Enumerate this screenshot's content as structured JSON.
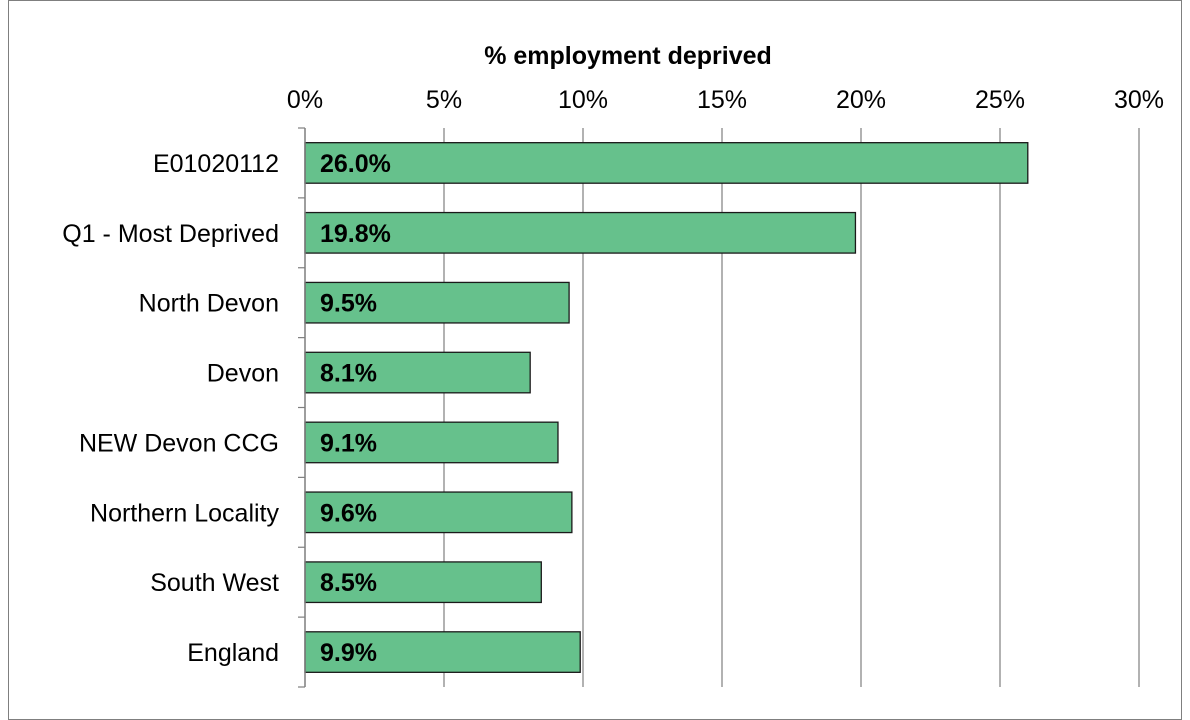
{
  "chart_data": {
    "type": "bar",
    "orientation": "horizontal",
    "title": "% employment deprived",
    "categories": [
      "E01020112",
      "Q1 - Most Deprived",
      "North Devon",
      "Devon",
      "NEW Devon CCG",
      "Northern Locality",
      "South West",
      "England"
    ],
    "values": [
      26.0,
      19.8,
      9.5,
      8.1,
      9.1,
      9.6,
      8.5,
      9.9
    ],
    "value_labels": [
      "26.0%",
      "19.8%",
      "9.5%",
      "8.1%",
      "9.1%",
      "9.6%",
      "8.5%",
      "9.9%"
    ],
    "x_ticks": [
      0,
      5,
      10,
      15,
      20,
      25,
      30
    ],
    "x_tick_labels": [
      "0%",
      "5%",
      "10%",
      "15%",
      "20%",
      "25%",
      "30%"
    ],
    "xlim": [
      0,
      30
    ],
    "axis_position": "top",
    "grid": true,
    "legend": "none",
    "colors": {
      "bar_fill": "#66c18c",
      "bar_stroke": "#1a1a1a",
      "gridline": "#7f7f7f",
      "text": "#000000"
    }
  }
}
